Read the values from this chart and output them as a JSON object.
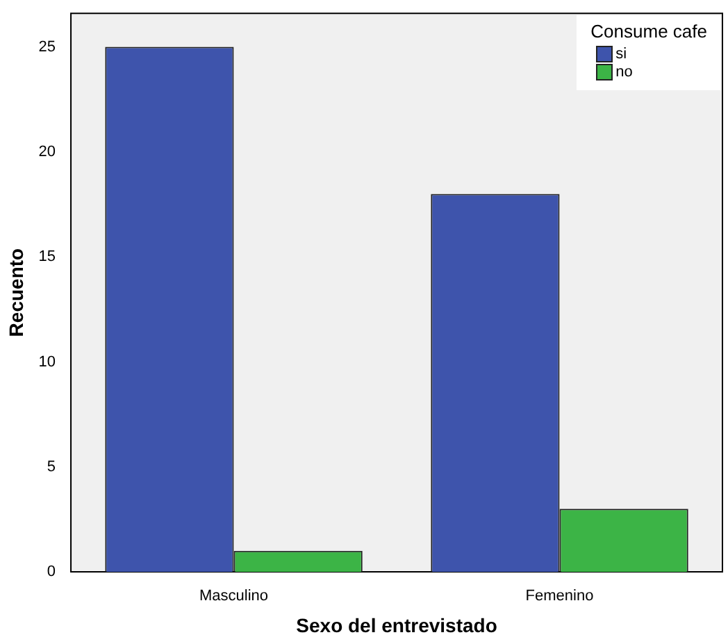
{
  "chart_data": {
    "type": "bar",
    "xlabel": "Sexo del entrevistado",
    "ylabel": "Recuento",
    "legend_title": "Consume cafe",
    "legend": "top right",
    "grid": false,
    "categories": [
      "Masculino",
      "Femenino"
    ],
    "series": [
      {
        "name": "si",
        "color": "#3e54ac",
        "values": [
          25,
          18
        ]
      },
      {
        "name": "no",
        "color": "#3cb446",
        "values": [
          1,
          3
        ]
      }
    ],
    "ylim": [
      0,
      26.6
    ],
    "yticks": [
      0,
      5,
      10,
      15,
      20,
      25
    ]
  }
}
